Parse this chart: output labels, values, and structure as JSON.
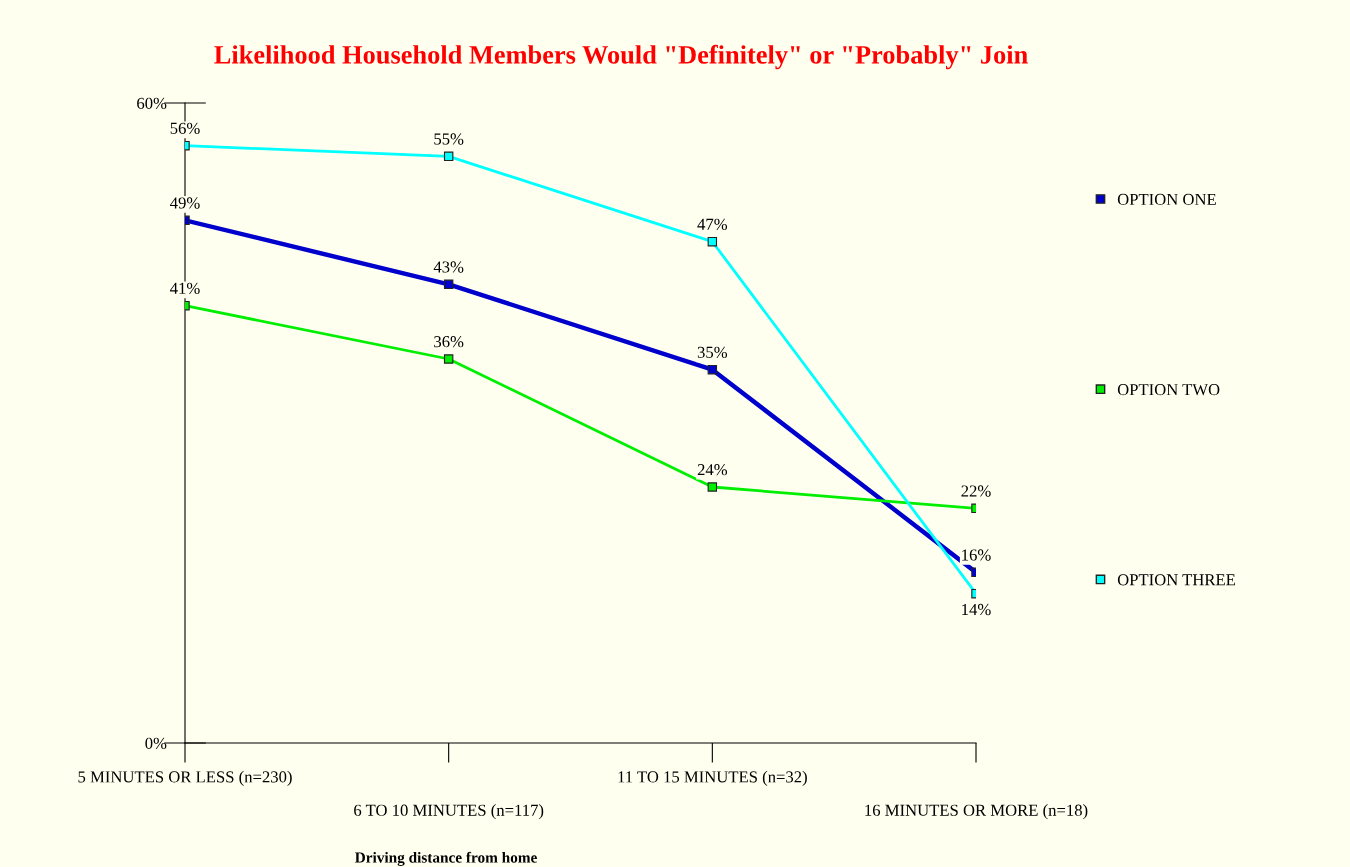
{
  "chart_data": {
    "type": "line",
    "title": "Likelihood Household Members Would \"Definitely\" or \"Probably\" Join",
    "xlabel": "Driving distance from home",
    "categories": [
      "5 MINUTES OR LESS (n=230)",
      "6 TO 10 MINUTES (n=117)",
      "11 TO 15 MINUTES (n=32)",
      "16 MINUTES OR MORE (n=18)"
    ],
    "series": [
      {
        "name": "OPTION ONE",
        "color": "#0000cc",
        "values": [
          49,
          43,
          35,
          16
        ],
        "value_labels": [
          "49%",
          "43%",
          "35%",
          "16%"
        ]
      },
      {
        "name": "OPTION TWO",
        "color": "#00ee00",
        "values": [
          41,
          36,
          24,
          22
        ],
        "value_labels": [
          "41%",
          "36%",
          "24%",
          "22%"
        ]
      },
      {
        "name": "OPTION THREE",
        "color": "#00ffff",
        "values": [
          56,
          55,
          47,
          14
        ],
        "value_labels": [
          "56%",
          "55%",
          "47%",
          "14%"
        ]
      }
    ],
    "ylim": [
      0,
      60
    ],
    "yticks": [
      {
        "value": 0,
        "label": "0%"
      },
      {
        "value": 60,
        "label": "60%"
      }
    ],
    "grid": false,
    "legend": "right",
    "marker": "square",
    "line_style": "solid"
  }
}
